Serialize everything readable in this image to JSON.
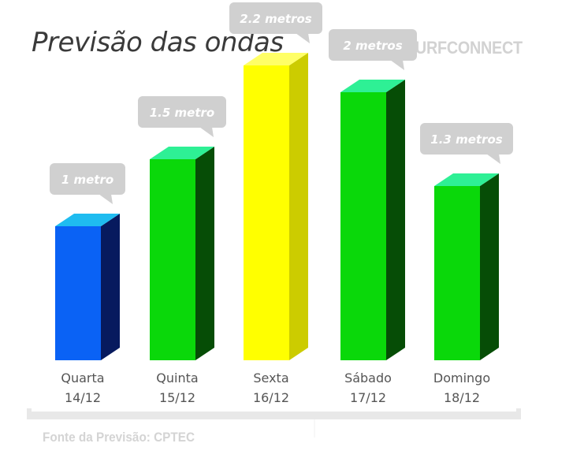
{
  "header": {
    "title": "Previsão das ondas",
    "brand": "SURFCONNECT"
  },
  "footer": {
    "source": "Fonte da Previsão: CPTEC"
  },
  "chart_data": {
    "type": "bar",
    "title": "Previsão das ondas",
    "xlabel": "",
    "ylabel": "",
    "ylim": [
      0,
      2.5
    ],
    "grid": false,
    "legend": "none",
    "categories": [
      {
        "day": "Quarta",
        "date": "14/12"
      },
      {
        "day": "Quinta",
        "date": "15/12"
      },
      {
        "day": "Sexta",
        "date": "16/12"
      },
      {
        "day": "Sábado",
        "date": "17/12"
      },
      {
        "day": "Domingo",
        "date": "18/12"
      }
    ],
    "values": [
      1,
      1.5,
      2.2,
      2,
      1.3
    ],
    "data_labels": [
      "1 metro",
      "1.5 metro",
      "2.2 metros",
      "2 metros",
      "1.3 metros"
    ],
    "colors": [
      {
        "front": "#0a62f5",
        "top": "#1fbcf0",
        "side": "#071a5e"
      },
      {
        "front": "#0ad80a",
        "top": "#2ef095",
        "side": "#064d06"
      },
      {
        "front": "#ffff00",
        "top": "#ffff66",
        "side": "#cccc00"
      },
      {
        "front": "#0ad80a",
        "top": "#2ef095",
        "side": "#064d06"
      },
      {
        "front": "#0ad80a",
        "top": "#2ef095",
        "side": "#064d06"
      }
    ],
    "callout_color": "#d0d0d0"
  }
}
